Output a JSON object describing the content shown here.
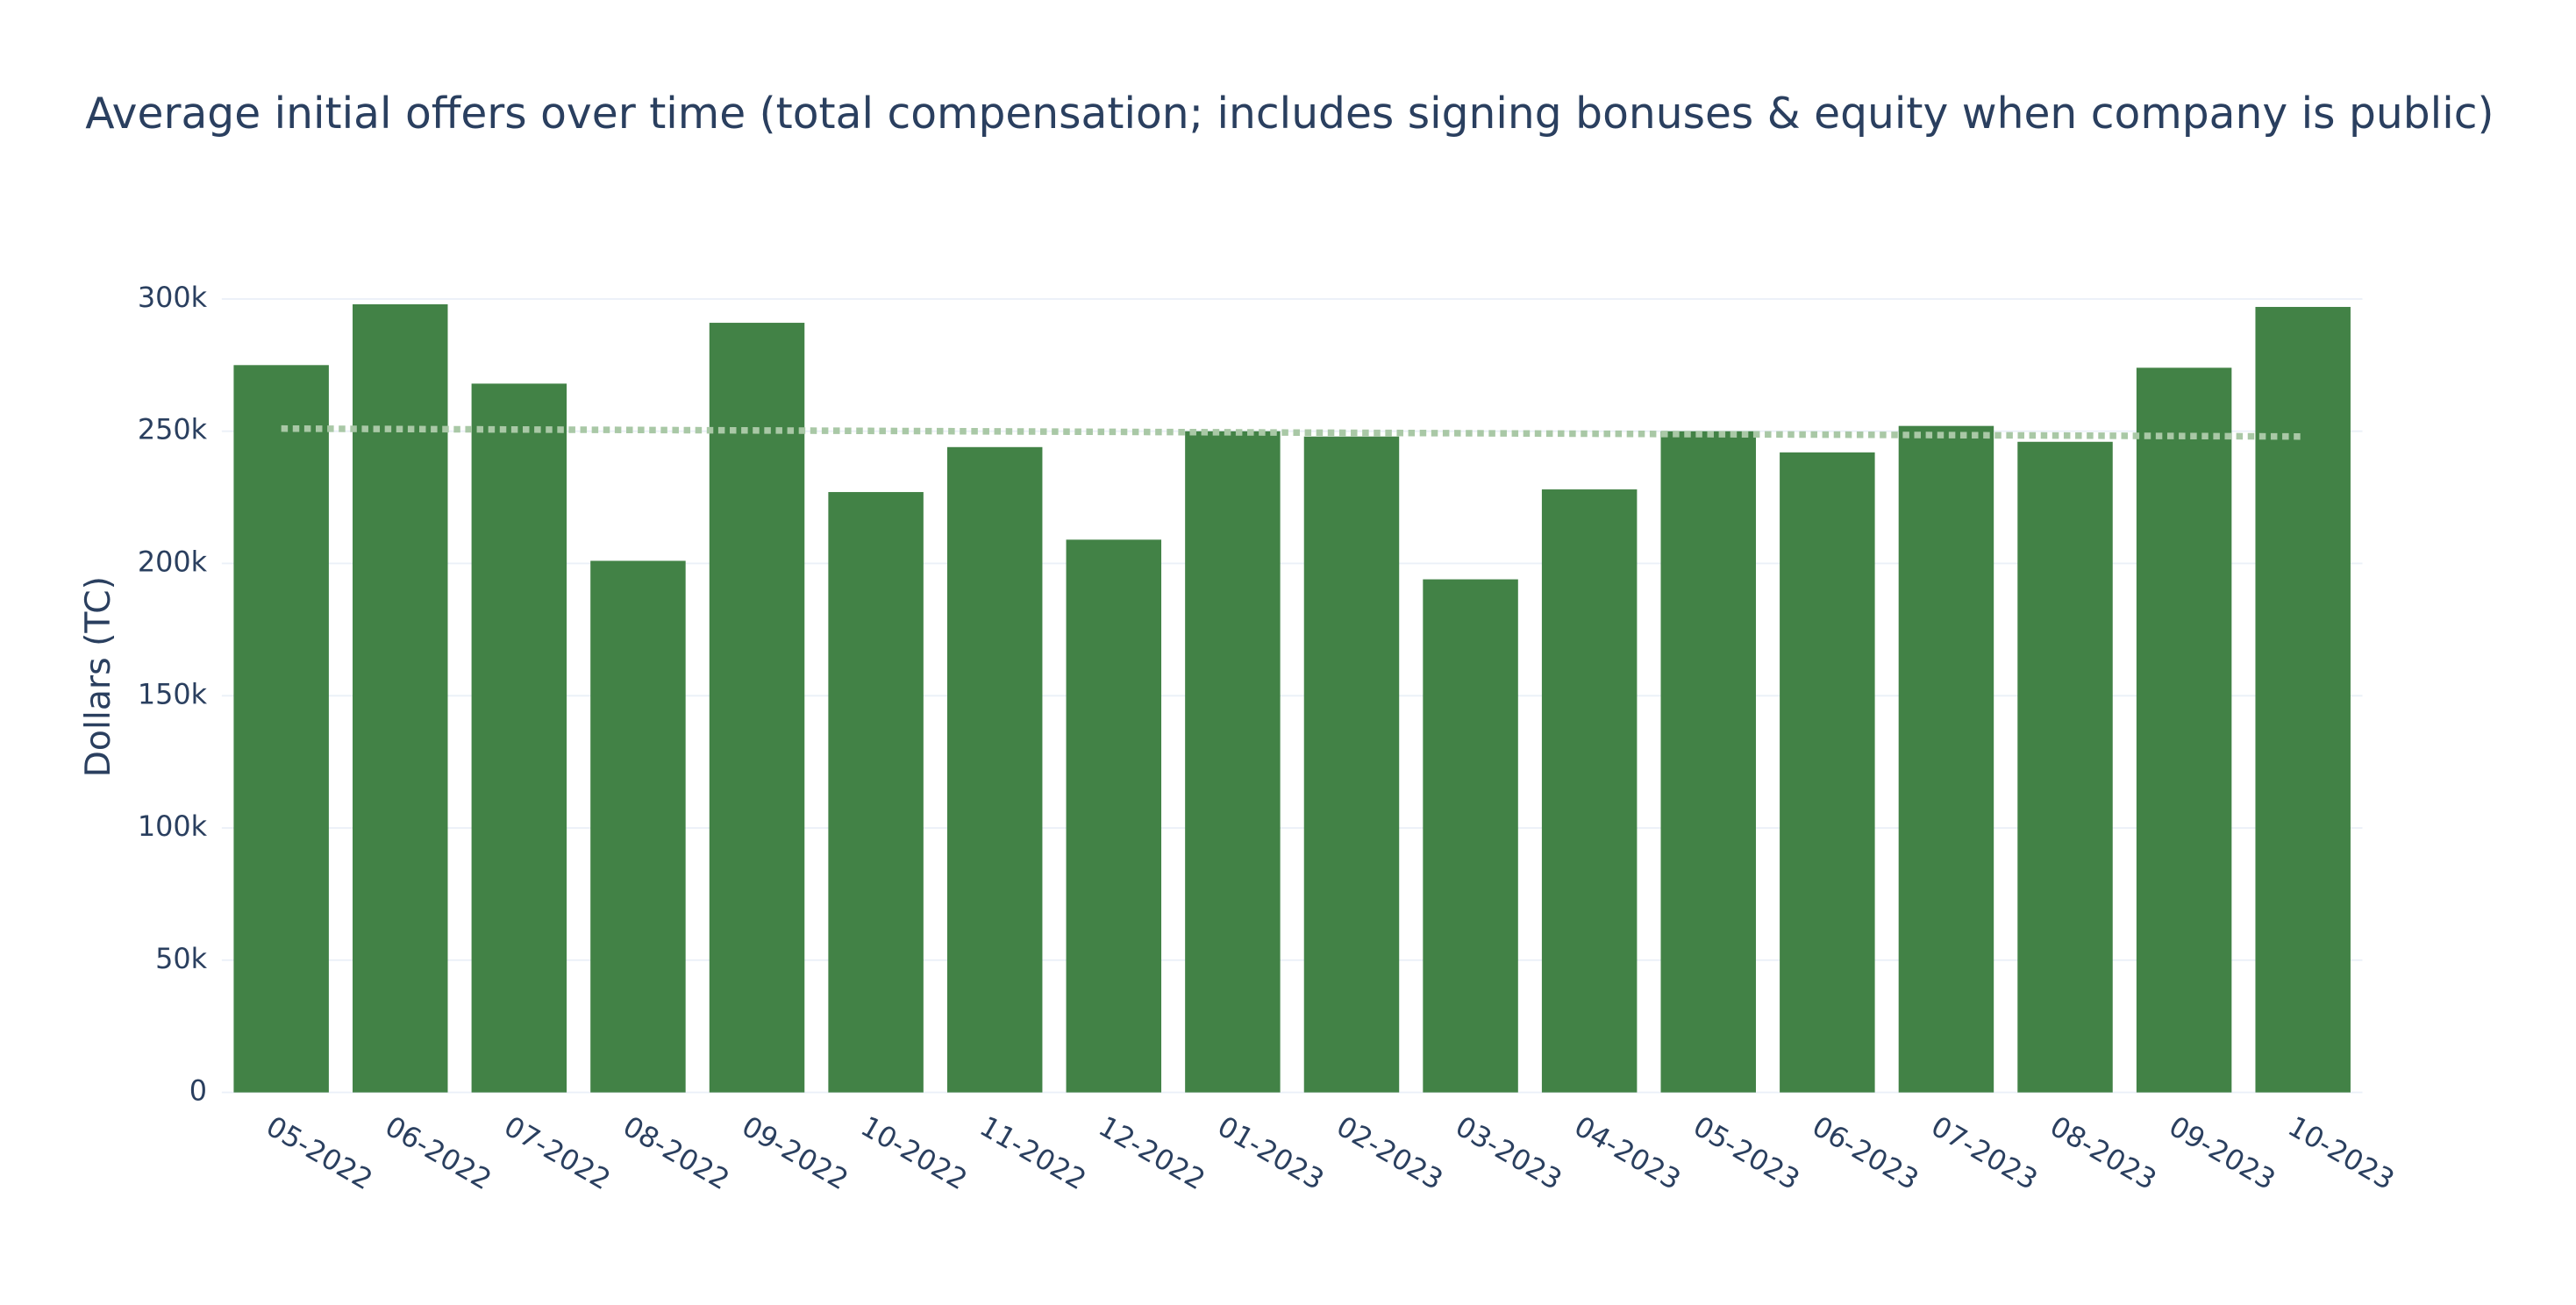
{
  "chart_data": {
    "type": "bar",
    "title": "Average initial offers over time (total compensation; includes signing bonuses & equity when company is public)",
    "y_label": "Dollars (TC)",
    "categories": [
      "05-2022",
      "06-2022",
      "07-2022",
      "08-2022",
      "09-2022",
      "10-2022",
      "11-2022",
      "12-2022",
      "01-2023",
      "02-2023",
      "03-2023",
      "04-2023",
      "05-2023",
      "06-2023",
      "07-2023",
      "08-2023",
      "09-2023",
      "10-2023"
    ],
    "values": [
      275000,
      298000,
      268000,
      201000,
      291000,
      227000,
      244000,
      209000,
      250000,
      248000,
      194000,
      228000,
      250000,
      242000,
      252000,
      246000,
      274000,
      297000
    ],
    "color": "#428246",
    "trend": {
      "color": "#a9c8a6",
      "values": [
        251000,
        248000
      ]
    },
    "ylim": [
      0,
      300000
    ],
    "yticks": [
      0,
      {
        "value": 50000,
        "label": "50k"
      },
      {
        "value": 100000,
        "label": "100k"
      },
      {
        "value": 150000,
        "label": "150k"
      },
      {
        "value": 200000,
        "label": "200k"
      },
      {
        "value": 250000,
        "label": "250k"
      },
      {
        "value": 300000,
        "label": "300k"
      }
    ],
    "grid": true
  }
}
